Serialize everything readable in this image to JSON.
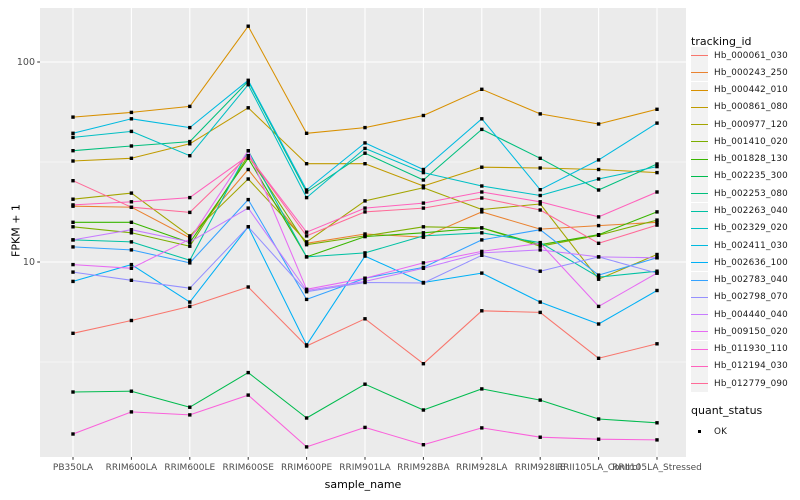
{
  "figure": {
    "y_axis_title": "FPKM + 1",
    "x_axis_title": "sample_name",
    "colors": {
      "panel_bg": "#EBEBEB",
      "grid": "#FFFFFF",
      "marker": "#000000",
      "tick_label": "#4D4D4D",
      "tick_mark": "#333333"
    }
  },
  "chart_data": {
    "type": "line",
    "title": "",
    "xlabel": "sample_name",
    "ylabel": "FPKM + 1",
    "y_scale": "log10",
    "grid": true,
    "legend_position": "right",
    "legend_title": "tracking_id",
    "y_ticks": [
      10,
      100
    ],
    "y_tick_labels": [
      "10",
      "100"
    ],
    "y_minor_ticks": [
      3.1623,
      31.623
    ],
    "ylim": [
      1.06,
      186
    ],
    "categories": [
      "PB350LA",
      "RRIM600LA",
      "RRIM600LE",
      "RRIM600SE",
      "RRIM600PE",
      "RRIM901LA",
      "RRIM928BA",
      "RRIM928LA",
      "RRIM928LE",
      "RRII105LA_Control",
      "RRII105LA_Stressed"
    ],
    "series": [
      {
        "name": "Hb_000061_030",
        "color": "#F8766D",
        "values": [
          4.4,
          5.1,
          6.0,
          7.5,
          3.8,
          5.2,
          3.1,
          5.7,
          5.6,
          3.3,
          3.9
        ]
      },
      {
        "name": "Hb_000243_250",
        "color": "#EA8331",
        "values": [
          19.0,
          18.8,
          13.2,
          29.0,
          12.4,
          13.8,
          13.3,
          17.8,
          14.6,
          15.2,
          15.8
        ]
      },
      {
        "name": "Hb_000442_010",
        "color": "#D89000",
        "values": [
          53,
          56,
          60,
          151,
          44,
          47,
          54,
          73,
          55,
          49,
          58
        ]
      },
      {
        "name": "Hb_000861_080",
        "color": "#C09B00",
        "values": [
          32,
          33,
          39,
          59,
          31,
          31,
          24,
          29.8,
          29.5,
          29,
          28
        ]
      },
      {
        "name": "Hb_000977_120",
        "color": "#A3A500",
        "values": [
          20.6,
          22.1,
          13.5,
          26,
          12.6,
          20.2,
          23.5,
          18.3,
          19.5,
          8.2,
          10.9
        ]
      },
      {
        "name": "Hb_001410_020",
        "color": "#7CAE00",
        "values": [
          15.0,
          14.0,
          12.0,
          34,
          12.2,
          13.5,
          15.0,
          14.8,
          12.0,
          13.6,
          16.2
        ]
      },
      {
        "name": "Hb_001828_130",
        "color": "#39B600",
        "values": [
          15.8,
          15.8,
          12.5,
          33,
          10.6,
          13.4,
          14.0,
          14.8,
          12.2,
          13.7,
          17.8
        ]
      },
      {
        "name": "Hb_002235_300",
        "color": "#00BB4E",
        "values": [
          2.24,
          2.26,
          1.88,
          2.8,
          1.66,
          2.45,
          1.82,
          2.32,
          2.04,
          1.64,
          1.57
        ]
      },
      {
        "name": "Hb_002253_080",
        "color": "#00BF7D",
        "values": [
          36,
          38,
          40,
          80,
          22.4,
          35,
          25.7,
          46,
          33,
          22.9,
          30.9
        ]
      },
      {
        "name": "Hb_002263_040",
        "color": "#00C1A3",
        "values": [
          12.9,
          12.6,
          10.2,
          36,
          10.6,
          11.1,
          13.5,
          14.0,
          12.5,
          8.4,
          9.0
        ]
      },
      {
        "name": "Hb_002329_020",
        "color": "#00BFC4",
        "values": [
          42,
          45,
          34,
          77,
          21,
          37,
          28,
          24,
          21.5,
          26,
          30
        ]
      },
      {
        "name": "Hb_002411_030",
        "color": "#00BAE0",
        "values": [
          44,
          52,
          47,
          81,
          22.9,
          39.4,
          29,
          52,
          23,
          32.4,
          49.5
        ]
      },
      {
        "name": "Hb_002636_100",
        "color": "#00B0F6",
        "values": [
          8.0,
          9.7,
          6.3,
          15,
          3.85,
          10.7,
          7.9,
          8.8,
          6.3,
          4.9,
          7.2
        ]
      },
      {
        "name": "Hb_002783_040",
        "color": "#35A2FF",
        "values": [
          11.9,
          11.5,
          9.9,
          20.5,
          6.5,
          8.3,
          9.4,
          12.9,
          14.5,
          8.6,
          10.5
        ]
      },
      {
        "name": "Hb_002798_070",
        "color": "#9590FF",
        "values": [
          8.9,
          8.1,
          7.4,
          15,
          7.1,
          7.9,
          7.85,
          10.8,
          9.0,
          10.6,
          8.8
        ]
      },
      {
        "name": "Hb_004440_040",
        "color": "#C77CFF",
        "values": [
          12.9,
          14.5,
          12.6,
          18.6,
          7.2,
          8.0,
          9.3,
          11.1,
          11.5,
          10.6,
          10.5
        ]
      },
      {
        "name": "Hb_009150_020",
        "color": "#E76BF3",
        "values": [
          9.7,
          9.3,
          13.0,
          36,
          7.3,
          8.3,
          9.9,
          11.3,
          12.4,
          6.0,
          8.8
        ]
      },
      {
        "name": "Hb_011930_110",
        "color": "#FA62DB",
        "values": [
          1.38,
          1.78,
          1.72,
          2.16,
          1.19,
          1.49,
          1.22,
          1.48,
          1.33,
          1.3,
          1.29
        ]
      },
      {
        "name": "Hb_012194_030",
        "color": "#FF62BC",
        "values": [
          19.3,
          20.0,
          21.0,
          34,
          14.1,
          18.6,
          19.7,
          22.4,
          20.0,
          16.8,
          22.4
        ]
      },
      {
        "name": "Hb_012779_090",
        "color": "#FF6A98",
        "values": [
          25.5,
          18.8,
          17.7,
          34,
          13.5,
          17.8,
          18.6,
          20.9,
          18.2,
          12.4,
          15.3
        ]
      }
    ],
    "legend2": {
      "title": "quant_status",
      "items": [
        {
          "label": "OK"
        }
      ]
    }
  }
}
